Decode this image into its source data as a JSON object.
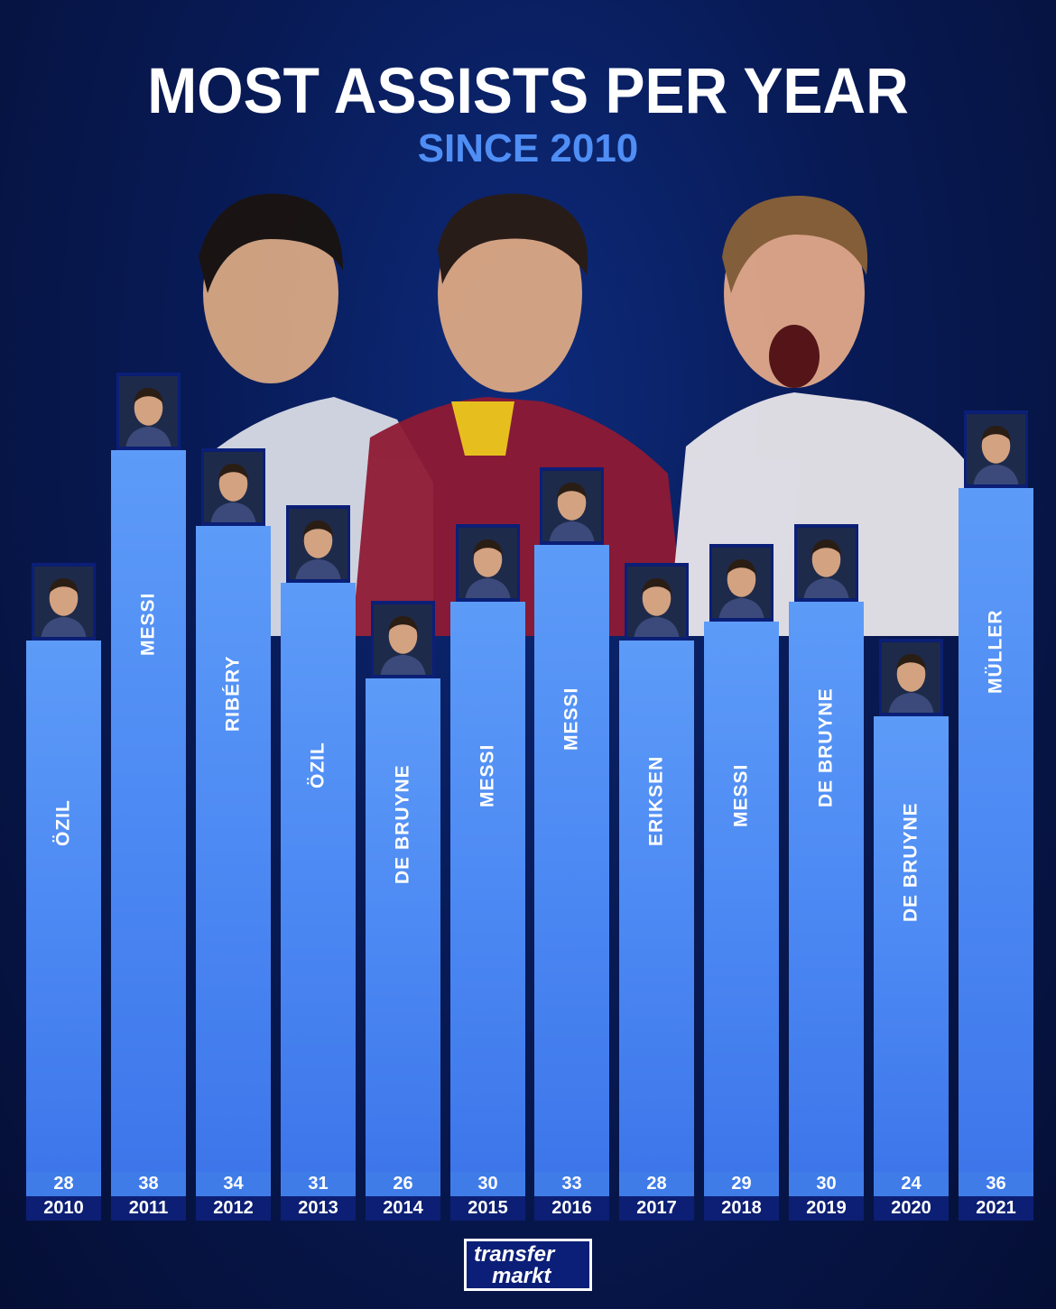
{
  "title": "MOST ASSISTS PER YEAR",
  "subtitle": "SINCE 2010",
  "logo": {
    "line1": "transfer",
    "line2": "markt"
  },
  "colors": {
    "background": "#081a55",
    "bar": "#4a86f2",
    "subtitle": "#4f8ef5",
    "year_band": "#0c1f74"
  },
  "chart_data": {
    "type": "bar",
    "title": "MOST ASSISTS PER YEAR",
    "subtitle": "SINCE 2010",
    "categories": [
      "2010",
      "2011",
      "2012",
      "2013",
      "2014",
      "2015",
      "2016",
      "2017",
      "2018",
      "2019",
      "2020",
      "2021"
    ],
    "values": [
      28,
      38,
      34,
      31,
      26,
      30,
      33,
      28,
      29,
      30,
      24,
      36
    ],
    "players": [
      "ÖZIL",
      "MESSI",
      "RIBÉRY",
      "ÖZIL",
      "DE BRUYNE",
      "MESSI",
      "MESSI",
      "ERIKSEN",
      "MESSI",
      "DE BRUYNE",
      "DE BRUYNE",
      "MÜLLER"
    ],
    "ylim": [
      0,
      38
    ]
  }
}
